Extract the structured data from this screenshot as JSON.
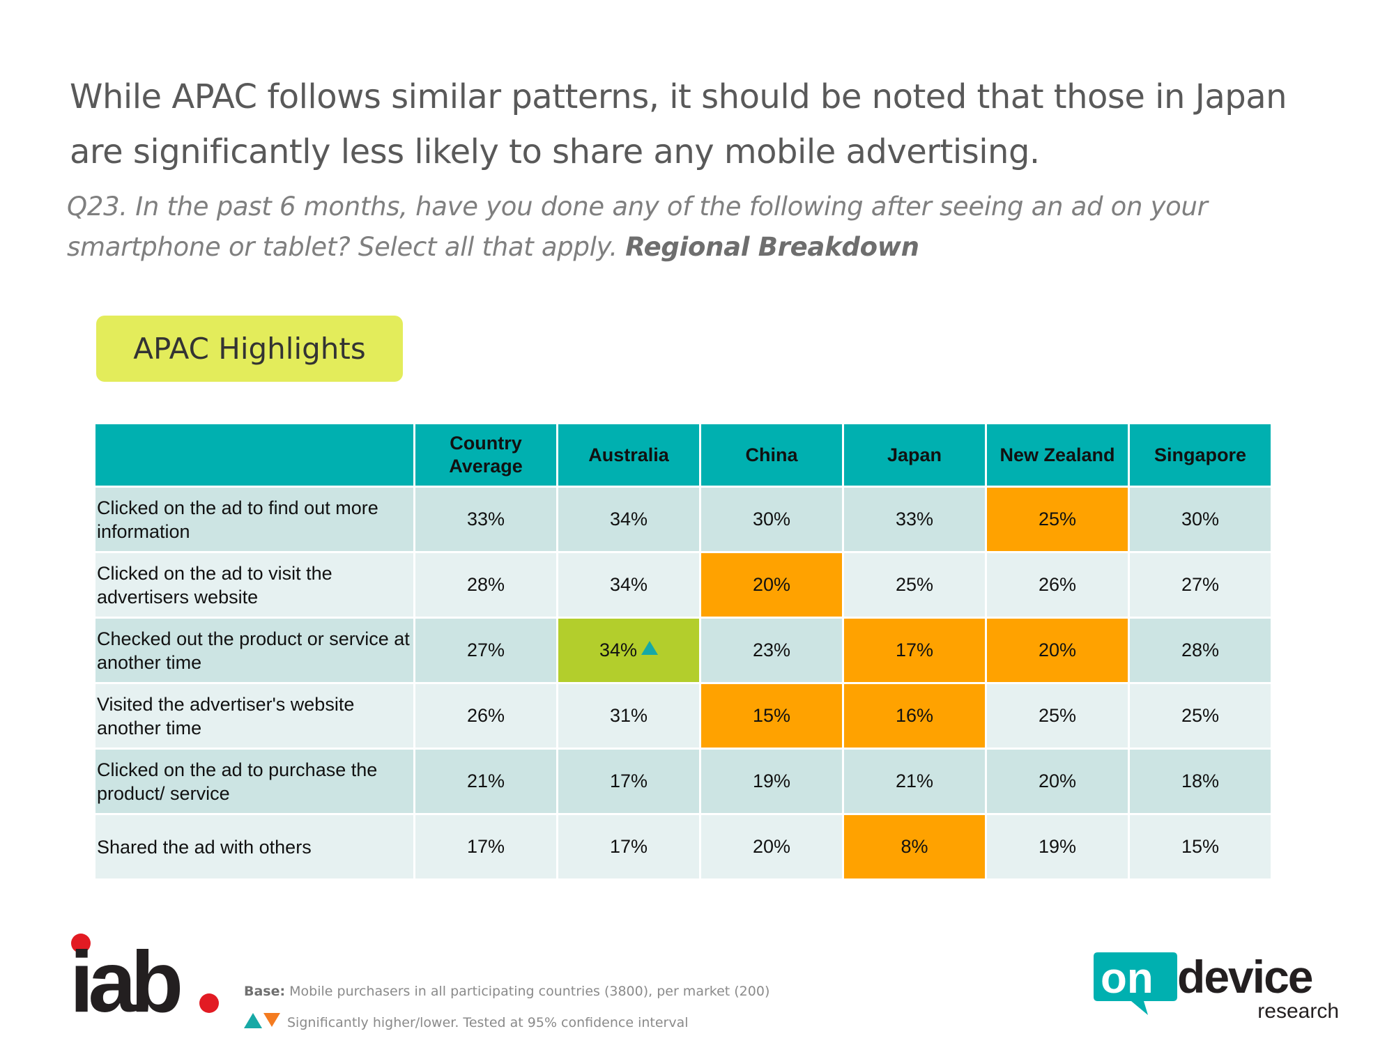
{
  "headline": "While APAC follows similar patterns, it should be noted that those in Japan are significantly less likely to share any mobile advertising.",
  "question": {
    "text": "Q23. In the past 6 months, have you done any of the following after seeing an ad on your smartphone or tablet? Select all that apply. ",
    "emphasis": "Regional Breakdown"
  },
  "badge_label": "APAC Highlights",
  "table": {
    "columns": [
      "",
      "Country Average",
      "Australia",
      "China",
      "Japan",
      "New Zealand",
      "Singapore"
    ],
    "rows": [
      {
        "label": "Clicked on the ad to find out more information",
        "values": [
          "33%",
          "34%",
          "30%",
          "33%",
          "25%",
          "30%"
        ],
        "flags": [
          "",
          "",
          "",
          "",
          "lower",
          ""
        ]
      },
      {
        "label": "Clicked on the ad to visit the advertisers website",
        "values": [
          "28%",
          "34%",
          "20%",
          "25%",
          "26%",
          "27%"
        ],
        "flags": [
          "",
          "",
          "lower",
          "",
          "",
          ""
        ]
      },
      {
        "label": "Checked out the product or service at another time",
        "values": [
          "27%",
          "34%",
          "23%",
          "17%",
          "20%",
          "28%"
        ],
        "flags": [
          "",
          "higher",
          "",
          "lower",
          "lower",
          ""
        ]
      },
      {
        "label": "Visited the advertiser's website another time",
        "values": [
          "26%",
          "31%",
          "15%",
          "16%",
          "25%",
          "25%"
        ],
        "flags": [
          "",
          "",
          "lower",
          "lower",
          "",
          ""
        ]
      },
      {
        "label": "Clicked on the ad to purchase the product/ service",
        "values": [
          "21%",
          "17%",
          "19%",
          "21%",
          "20%",
          "18%"
        ],
        "flags": [
          "",
          "",
          "",
          "",
          "",
          ""
        ]
      },
      {
        "label": "Shared the ad with others",
        "values": [
          "17%",
          "17%",
          "20%",
          "8%",
          "19%",
          "15%"
        ],
        "flags": [
          "",
          "",
          "",
          "lower",
          "",
          ""
        ]
      }
    ]
  },
  "colors": {
    "header": "#00b0b0",
    "row_odd": "#cce4e3",
    "row_even": "#e6f1f1",
    "lower": "#ffa200",
    "higher": "#b3ce2c",
    "badge": "#e3ec5b"
  },
  "footer": {
    "base_label": "Base:",
    "base_text": " Mobile purchasers in all participating countries (3800), per market (200)",
    "legend_text": "Significantly higher/lower. Tested at 95% confidence interval"
  },
  "logos": {
    "left": {
      "name": "iab-logo",
      "text": "iab"
    },
    "right": {
      "name": "ondevice-research-logo",
      "on": "on",
      "device": "device",
      "research": "research"
    }
  },
  "icons": [
    "triangle-up-icon",
    "triangle-down-icon"
  ]
}
